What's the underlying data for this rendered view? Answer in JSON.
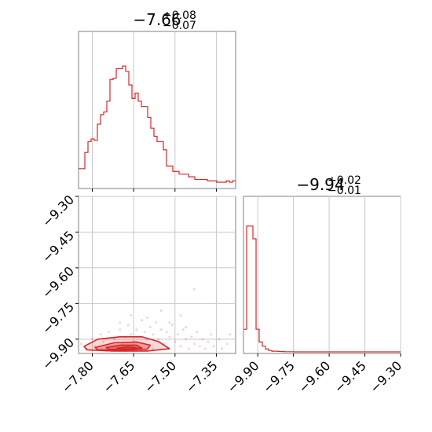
{
  "chart_data": {
    "type": "corner",
    "color": "#d62728",
    "grid": true,
    "panels": [
      {
        "id": "param1-marginal",
        "type": "histogram-step",
        "title_main": "−7.66",
        "title_upper": "+0.08",
        "title_lower": "−0.07",
        "xlim": [
          -7.85,
          -7.28
        ],
        "x_gridlines": [
          -7.8,
          -7.65,
          -7.5,
          -7.35
        ],
        "bin_width": 0.0114,
        "densities": [
          0.1,
          0.1,
          0.22,
          0.3,
          0.32,
          0.31,
          0.43,
          0.5,
          0.52,
          0.6,
          0.76,
          0.77,
          0.84,
          0.84,
          0.86,
          0.82,
          0.72,
          0.62,
          0.66,
          0.6,
          0.56,
          0.56,
          0.48,
          0.4,
          0.34,
          0.3,
          0.3,
          0.24,
          0.12,
          0.12,
          0.08,
          0.08,
          0.06,
          0.06,
          0.06,
          0.04,
          0.04,
          0.02,
          0.02,
          0.02,
          0.02,
          0.01,
          0.01,
          0.01,
          0.0,
          0.0,
          0.0,
          0.01,
          0.0,
          0.01
        ]
      },
      {
        "id": "param2-marginal",
        "type": "histogram-step",
        "title_main": "−9.94",
        "title_upper": "+0.02",
        "title_lower": "−0.01",
        "xlim": [
          -9.96,
          -9.3
        ],
        "x_ticks": [
          "−9.90",
          "−9.75",
          "−9.60",
          "−9.45",
          "−9.30"
        ],
        "x_tick_values": [
          -9.9,
          -9.75,
          -9.6,
          -9.45,
          -9.3
        ],
        "bin_width": 0.0132,
        "densities": [
          0.16,
          0.89,
          0.89,
          0.8,
          0.16,
          0.07,
          0.04,
          0.02,
          0.01,
          0.005,
          0.005,
          0.003,
          0.002,
          0.001,
          0.001,
          0.001,
          0.0,
          0.0,
          0.0,
          0.0,
          0.0,
          0.0,
          0.0,
          0.0,
          0.0,
          0.0,
          0.0,
          0.0,
          0.0,
          0.0,
          0.0,
          0.0,
          0.0,
          0.0,
          0.0,
          0.0,
          0.0,
          0.0,
          0.0,
          0.0,
          0.0,
          0.0,
          0.0,
          0.0,
          0.0,
          0.0,
          0.0,
          0.0,
          0.0,
          0.0
        ]
      },
      {
        "id": "joint-2d",
        "type": "scatter-contour",
        "xlim": [
          -7.85,
          -7.28
        ],
        "ylim": [
          -9.96,
          -9.3
        ],
        "x_ticks": [
          "−7.80",
          "−7.65",
          "−7.50",
          "−7.35"
        ],
        "x_tick_values": [
          -7.8,
          -7.65,
          -7.5,
          -7.35
        ],
        "y_ticks": [
          "−9.30",
          "−9.45",
          "−9.60",
          "−9.75",
          "−9.90"
        ],
        "y_tick_values": [
          -9.3,
          -9.45,
          -9.6,
          -9.75,
          -9.9
        ],
        "contours": [
          {
            "level": "outer",
            "points": [
              [
                -7.83,
                -9.93
              ],
              [
                -7.78,
                -9.9
              ],
              [
                -7.7,
                -9.89
              ],
              [
                -7.62,
                -9.89
              ],
              [
                -7.56,
                -9.91
              ],
              [
                -7.52,
                -9.94
              ],
              [
                -7.6,
                -9.95
              ],
              [
                -7.72,
                -9.95
              ],
              [
                -7.82,
                -9.945
              ]
            ]
          },
          {
            "level": "middle",
            "points": [
              [
                -7.79,
                -9.935
              ],
              [
                -7.72,
                -9.915
              ],
              [
                -7.64,
                -9.912
              ],
              [
                -7.59,
                -9.925
              ],
              [
                -7.6,
                -9.942
              ],
              [
                -7.7,
                -9.946
              ],
              [
                -7.78,
                -9.945
              ]
            ]
          },
          {
            "level": "inner",
            "points": [
              [
                -7.75,
                -9.935
              ],
              [
                -7.7,
                -9.925
              ],
              [
                -7.64,
                -9.925
              ],
              [
                -7.62,
                -9.937
              ],
              [
                -7.68,
                -9.944
              ],
              [
                -7.74,
                -9.943
              ]
            ]
          },
          {
            "level": "core",
            "points": [
              [
                -7.71,
                -9.938
              ],
              [
                -7.67,
                -9.932
              ],
              [
                -7.64,
                -9.937
              ],
              [
                -7.67,
                -9.943
              ]
            ]
          }
        ],
        "scatter": [
          [
            -7.84,
            -9.92
          ],
          [
            -7.82,
            -9.94
          ],
          [
            -7.8,
            -9.9
          ],
          [
            -7.79,
            -9.93
          ],
          [
            -7.77,
            -9.88
          ],
          [
            -7.76,
            -9.91
          ],
          [
            -7.74,
            -9.87
          ],
          [
            -7.73,
            -9.95
          ],
          [
            -7.72,
            -9.9
          ],
          [
            -7.7,
            -9.86
          ],
          [
            -7.69,
            -9.92
          ],
          [
            -7.68,
            -9.89
          ],
          [
            -7.67,
            -9.84
          ],
          [
            -7.66,
            -9.88
          ],
          [
            -7.65,
            -9.91
          ],
          [
            -7.64,
            -9.86
          ],
          [
            -7.63,
            -9.89
          ],
          [
            -7.62,
            -9.82
          ],
          [
            -7.61,
            -9.87
          ],
          [
            -7.6,
            -9.9
          ],
          [
            -7.59,
            -9.85
          ],
          [
            -7.58,
            -9.88
          ],
          [
            -7.57,
            -9.83
          ],
          [
            -7.56,
            -9.9
          ],
          [
            -7.55,
            -9.86
          ],
          [
            -7.54,
            -9.92
          ],
          [
            -7.53,
            -9.87
          ],
          [
            -7.52,
            -9.89
          ],
          [
            -7.51,
            -9.84
          ],
          [
            -7.5,
            -9.91
          ],
          [
            -7.49,
            -9.88
          ],
          [
            -7.48,
            -9.93
          ],
          [
            -7.47,
            -9.86
          ],
          [
            -7.46,
            -9.9
          ],
          [
            -7.45,
            -9.94
          ],
          [
            -7.44,
            -9.89
          ],
          [
            -7.43,
            -9.92
          ],
          [
            -7.42,
            -9.87
          ],
          [
            -7.41,
            -9.93
          ],
          [
            -7.4,
            -9.9
          ],
          [
            -7.39,
            -9.94
          ],
          [
            -7.38,
            -9.91
          ],
          [
            -7.37,
            -9.88
          ],
          [
            -7.36,
            -9.93
          ],
          [
            -7.34,
            -9.9
          ],
          [
            -7.33,
            -9.94
          ],
          [
            -7.31,
            -9.92
          ],
          [
            -7.3,
            -9.88
          ],
          [
            -7.43,
            -9.69
          ],
          [
            -7.48,
            -9.8
          ],
          [
            -7.55,
            -9.78
          ],
          [
            -7.6,
            -9.81
          ],
          [
            -7.7,
            -9.83
          ],
          [
            -7.66,
            -9.8
          ],
          [
            -7.52,
            -9.83
          ],
          [
            -7.46,
            -9.85
          ],
          [
            -7.58,
            -9.94
          ],
          [
            -7.62,
            -9.945
          ],
          [
            -7.68,
            -9.95
          ],
          [
            -7.75,
            -9.95
          ]
        ]
      }
    ]
  }
}
